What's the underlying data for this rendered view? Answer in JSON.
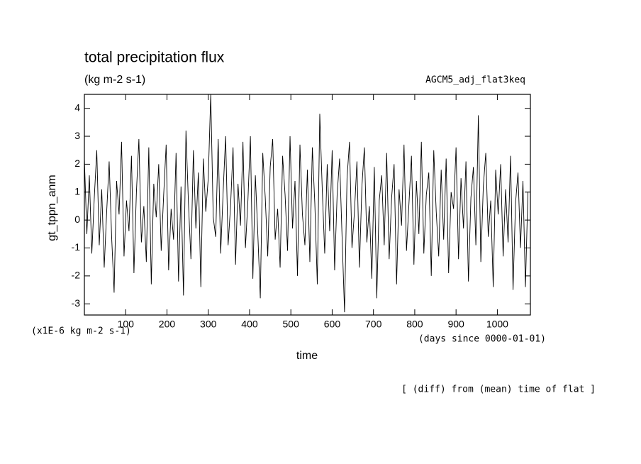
{
  "chart_data": {
    "type": "line",
    "title": "total precipitation flux",
    "subtitle": "(kg m-2 s-1)",
    "annotation_right": "AGCM5_adj_flat3keq",
    "y_label": "gt_tppn_anm",
    "y_unit": "(x1E-6 kg m-2 s-1)",
    "x_unit": "(days since 0000-01-01)",
    "x_label": "time",
    "footnote": "[ (diff) from (mean) time of flat ]",
    "xlim": [
      0,
      1080
    ],
    "ylim": [
      -3.4,
      4.5
    ],
    "xticks": [
      100,
      200,
      300,
      400,
      500,
      600,
      700,
      800,
      900,
      1000
    ],
    "yticks": [
      -3,
      -2,
      -1,
      0,
      1,
      2,
      3,
      4
    ],
    "color": "#000000",
    "x": [
      0,
      6,
      12,
      18,
      24,
      30,
      36,
      42,
      48,
      54,
      60,
      66,
      72,
      78,
      84,
      90,
      96,
      102,
      108,
      114,
      120,
      126,
      132,
      138,
      144,
      150,
      156,
      162,
      168,
      174,
      180,
      186,
      192,
      198,
      204,
      210,
      216,
      222,
      228,
      234,
      240,
      246,
      252,
      258,
      264,
      270,
      276,
      282,
      288,
      294,
      300,
      306,
      312,
      318,
      324,
      330,
      336,
      342,
      348,
      354,
      360,
      366,
      372,
      378,
      384,
      390,
      396,
      402,
      408,
      414,
      420,
      426,
      432,
      438,
      444,
      450,
      456,
      462,
      468,
      474,
      480,
      486,
      492,
      498,
      504,
      510,
      516,
      522,
      528,
      534,
      540,
      546,
      552,
      558,
      564,
      570,
      576,
      582,
      588,
      594,
      600,
      606,
      612,
      618,
      624,
      630,
      636,
      642,
      648,
      654,
      660,
      666,
      672,
      678,
      684,
      690,
      696,
      702,
      708,
      714,
      720,
      726,
      732,
      738,
      744,
      750,
      756,
      762,
      768,
      774,
      780,
      786,
      792,
      798,
      804,
      810,
      816,
      822,
      828,
      834,
      840,
      846,
      852,
      858,
      864,
      870,
      876,
      882,
      888,
      894,
      900,
      906,
      912,
      918,
      924,
      930,
      936,
      942,
      948,
      954,
      960,
      966,
      972,
      978,
      984,
      990,
      996,
      1002,
      1008,
      1014,
      1020,
      1026,
      1032,
      1038,
      1044,
      1050,
      1056,
      1062,
      1068,
      1074
    ],
    "values": [
      2.2,
      -0.5,
      1.6,
      -1.2,
      0.8,
      2.5,
      -0.9,
      1.1,
      -1.7,
      0.3,
      2.1,
      -0.6,
      -2.6,
      1.4,
      0.2,
      2.8,
      -1.3,
      0.7,
      -0.4,
      2.3,
      -1.9,
      1.0,
      2.9,
      -0.8,
      0.5,
      -1.5,
      2.6,
      -2.3,
      1.3,
      0.1,
      2.0,
      -1.1,
      0.9,
      2.7,
      -1.8,
      0.4,
      -0.7,
      2.4,
      -2.2,
      1.2,
      -2.7,
      3.2,
      0.6,
      -1.4,
      2.5,
      -0.3,
      1.7,
      -2.4,
      2.2,
      0.3,
      1.5,
      4.5,
      0.1,
      -0.6,
      2.9,
      -1.2,
      1.0,
      3.0,
      -0.9,
      0.5,
      2.6,
      -1.6,
      1.3,
      -0.2,
      2.8,
      -1.0,
      0.7,
      3.0,
      -2.1,
      1.6,
      -0.5,
      -2.8,
      2.4,
      0.8,
      -1.3,
      1.9,
      2.9,
      -0.7,
      0.4,
      -1.7,
      2.3,
      0.9,
      -1.1,
      3.0,
      -0.3,
      1.4,
      -2.0,
      2.7,
      0.2,
      -0.9,
      1.8,
      -1.5,
      2.6,
      0.6,
      -2.3,
      3.8,
      1.1,
      -1.2,
      2.0,
      -0.4,
      2.5,
      -1.8,
      0.9,
      2.2,
      -0.6,
      -3.3,
      1.5,
      2.8,
      -1.0,
      0.3,
      2.1,
      -1.7,
      1.2,
      2.6,
      -0.8,
      0.5,
      -2.1,
      1.9,
      -2.8,
      0.7,
      1.6,
      -0.9,
      2.4,
      -1.4,
      0.8,
      2.0,
      -2.3,
      1.1,
      -0.2,
      2.7,
      -1.1,
      0.6,
      2.3,
      -1.6,
      1.4,
      -0.5,
      2.8,
      -1.2,
      0.9,
      1.7,
      -2.0,
      2.5,
      0.3,
      -1.3,
      1.8,
      -0.7,
      2.2,
      -1.9,
      1.0,
      0.4,
      2.6,
      -1.4,
      1.5,
      -0.3,
      2.1,
      -2.2,
      0.8,
      1.9,
      -0.9,
      3.75,
      -1.5,
      1.2,
      2.4,
      -0.6,
      0.7,
      -2.4,
      1.8,
      0.2,
      2.0,
      -1.3,
      1.1,
      -0.8,
      2.3,
      -2.5,
      0.6,
      1.7,
      -1.0,
      1.4,
      -2.4,
      1.0
    ]
  }
}
